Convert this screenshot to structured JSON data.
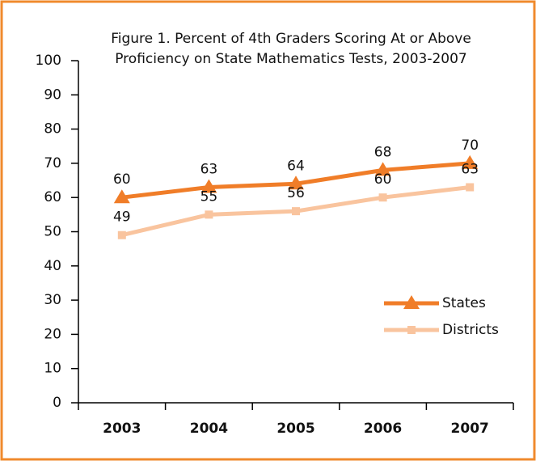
{
  "chart_data": {
    "type": "line",
    "title": [
      "Figure 1. Percent of 4th Graders Scoring At or Above",
      "Proficiency on State Mathematics Tests, 2003-2007"
    ],
    "categories": [
      "2003",
      "2004",
      "2005",
      "2006",
      "2007"
    ],
    "series": [
      {
        "name": "States",
        "color": "#f07d28",
        "marker": "triangle",
        "values": [
          60,
          63,
          64,
          68,
          70
        ]
      },
      {
        "name": "Districts",
        "color": "#f9c49e",
        "marker": "square",
        "values": [
          49,
          55,
          56,
          60,
          63
        ]
      }
    ],
    "ylim": [
      0,
      100
    ],
    "yticks": [
      0,
      10,
      20,
      30,
      40,
      50,
      60,
      70,
      80,
      90,
      100
    ],
    "grid": false,
    "legend": "right"
  }
}
